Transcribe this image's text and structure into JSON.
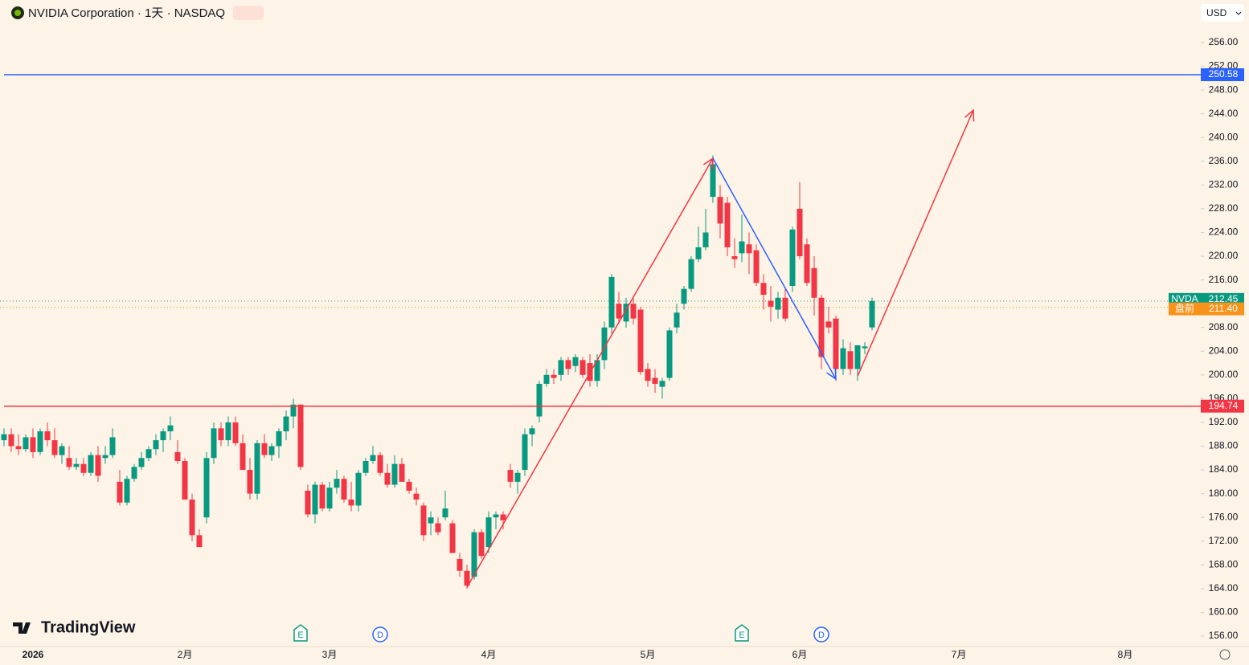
{
  "header": {
    "title": "NVIDIA Corporation · 1天 · NASDAQ",
    "currency": "USD",
    "brand": "TradingView"
  },
  "chart_data": {
    "type": "candlestick",
    "up_color": "#089981",
    "down_color": "#f23645",
    "categories": [
      null,
      null,
      null,
      null,
      "2026",
      null,
      null,
      null,
      null,
      null,
      null,
      null,
      null,
      null,
      null,
      null,
      null,
      null,
      null,
      null,
      null,
      null,
      null,
      null,
      null,
      "2月",
      null,
      null,
      null,
      null,
      null,
      null,
      null,
      null,
      null,
      null,
      null,
      null,
      null,
      null,
      null,
      null,
      null,
      null,
      null,
      "3月",
      null,
      null,
      null,
      null,
      null,
      null,
      null,
      null,
      null,
      null,
      null,
      null,
      null,
      null,
      null,
      null,
      null,
      null,
      null,
      null,
      null,
      "4月",
      null,
      null,
      null,
      null,
      null,
      null,
      null,
      null,
      null,
      null,
      null,
      null,
      null,
      null,
      null,
      null,
      null,
      null,
      null,
      null,
      null,
      "5月",
      null,
      null,
      null,
      null,
      null,
      null,
      null,
      null,
      null,
      null,
      null,
      null,
      null,
      null,
      null,
      null,
      null,
      null,
      null,
      null,
      "6月",
      null,
      null,
      null,
      null,
      null,
      null,
      null,
      null,
      null,
      null,
      null,
      null,
      null,
      null,
      null,
      null,
      null,
      null,
      null,
      null,
      null,
      "7月",
      null,
      null,
      null,
      null,
      null,
      null,
      null,
      null,
      null,
      null,
      null,
      null,
      null,
      null,
      null,
      null,
      null,
      null,
      null,
      null,
      null,
      null,
      "8月"
    ],
    "open": [
      189,
      190,
      188,
      187.5,
      189.5,
      187,
      190.5,
      189,
      186.5,
      186,
      184.5,
      185,
      183.5,
      186.5,
      186,
      186.5,
      182,
      178.5,
      182.5,
      184.5,
      186,
      187.5,
      189,
      190.5,
      187,
      185.5,
      179,
      173,
      176,
      186,
      191,
      189,
      192,
      188.5,
      184,
      180,
      188.5,
      186.5,
      188,
      190.5,
      193,
      195,
      180.5,
      176.5,
      181.5,
      177.5,
      181,
      182.5,
      179,
      178,
      183.5,
      185.5,
      186.5,
      183.5,
      181.5,
      185,
      182,
      180,
      178,
      175,
      175,
      176,
      175,
      169,
      167,
      166,
      173.5,
      171,
      176,
      176.5,
      184,
      182,
      184,
      190,
      193,
      198.5,
      200,
      200,
      202.5,
      201.5,
      202.5,
      202,
      199,
      202.5,
      208,
      212,
      209,
      212,
      211,
      201,
      199.5,
      198,
      199.5,
      208,
      212,
      214.5,
      219.5,
      221.5,
      230,
      230,
      229,
      220,
      220.5,
      222,
      221,
      215.5,
      212.5,
      211,
      213,
      215,
      228,
      222,
      218,
      213,
      209,
      209.5,
      201,
      204,
      201,
      204.5,
      208,
      null,
      null,
      null,
      null,
      null,
      null,
      null,
      null,
      null,
      null,
      null,
      null,
      null,
      null,
      null,
      null,
      null,
      null,
      null,
      null,
      null,
      null,
      null,
      null,
      null,
      null,
      null,
      null,
      null,
      null,
      null,
      null,
      null,
      null,
      null
    ],
    "high": [
      191,
      191,
      190,
      190,
      191,
      191,
      192,
      191,
      188.5,
      188,
      186,
      186,
      187,
      188,
      188,
      191,
      184,
      183,
      185,
      187,
      188,
      190,
      191,
      193,
      189,
      186,
      180,
      174,
      187,
      192,
      192,
      193,
      193,
      190,
      186,
      189,
      190,
      188.5,
      191,
      194,
      196,
      195,
      181.5,
      182,
      182,
      182,
      184,
      183,
      182,
      184,
      186,
      188,
      187,
      185,
      186.5,
      186,
      182.5,
      181,
      178.5,
      177,
      176,
      180.5,
      175.5,
      170,
      168,
      174,
      174,
      177,
      177,
      177,
      185,
      184,
      191,
      191.5,
      199,
      201,
      201,
      203,
      203,
      203.5,
      203,
      203.5,
      203.5,
      209,
      217,
      214,
      213,
      213,
      211.5,
      202,
      201,
      199.5,
      208,
      212,
      215,
      220,
      225,
      228,
      237,
      232,
      230,
      223,
      227,
      224,
      222,
      217,
      215,
      214,
      214.5,
      225,
      232.5,
      223,
      220,
      213.5,
      211.5,
      210,
      206,
      205.5,
      205,
      205.5,
      213,
      null,
      null,
      null,
      null,
      null,
      null,
      null,
      null,
      null,
      null,
      null,
      null,
      null,
      null,
      null,
      null,
      null,
      null,
      null,
      null,
      null,
      null,
      null,
      null,
      null,
      null,
      null,
      null,
      null,
      null,
      null,
      null,
      null,
      null,
      null
    ],
    "low": [
      188,
      187,
      186.5,
      187,
      186,
      186.5,
      188,
      186,
      185,
      184,
      184,
      183,
      183,
      182,
      185,
      186,
      178,
      178,
      182,
      184,
      185.5,
      186.5,
      187,
      189,
      185,
      179,
      172,
      171,
      175,
      185,
      188,
      188,
      188,
      184,
      179,
      179,
      186,
      185.5,
      186,
      189,
      191,
      184,
      176,
      175,
      177,
      177,
      180,
      178.5,
      177,
      177,
      183,
      185,
      183,
      181,
      181,
      182,
      180,
      178,
      172,
      173,
      173,
      175.5,
      170,
      166,
      164,
      165.5,
      169,
      170,
      174,
      174,
      181,
      180,
      183,
      188,
      192,
      198,
      198.5,
      199,
      200,
      200.5,
      199.5,
      198,
      198,
      201,
      207,
      209,
      208,
      208.5,
      200,
      198,
      197,
      196,
      199,
      207,
      211,
      214,
      219,
      221,
      229,
      223,
      220,
      218,
      219,
      217,
      215,
      211,
      209,
      209.5,
      209,
      214,
      219.5,
      215,
      210,
      201,
      207,
      199,
      200,
      200,
      199,
      203.5,
      207.5,
      null,
      null,
      null,
      null,
      null,
      null,
      null,
      null,
      null,
      null,
      null,
      null,
      null,
      null,
      null,
      null,
      null,
      null,
      null,
      null,
      null,
      null,
      null,
      null,
      null,
      null,
      null,
      null,
      null,
      null,
      null,
      null,
      null,
      null,
      null
    ],
    "close": [
      190,
      188,
      187.5,
      189.5,
      187,
      190.5,
      189,
      186.5,
      188,
      184.5,
      185,
      183.5,
      186.5,
      183,
      186.5,
      189.5,
      178.5,
      182.5,
      184.5,
      186,
      187.5,
      189,
      190.5,
      191.5,
      185.5,
      179,
      173,
      171,
      186,
      191,
      189,
      192,
      188.5,
      184,
      180,
      188.5,
      186.5,
      188,
      190.5,
      193,
      195,
      184.5,
      176.5,
      181.5,
      177.5,
      181,
      182.5,
      179,
      178,
      183.5,
      185.5,
      186.5,
      183.5,
      181.5,
      185,
      182,
      180.5,
      179,
      173,
      176,
      173.5,
      177.5,
      170,
      167,
      164.5,
      173.5,
      169.5,
      176,
      176.5,
      175.5,
      182,
      183.5,
      190,
      191,
      198.5,
      200,
      199.5,
      202.5,
      201,
      203,
      200,
      199,
      202.5,
      208,
      216.5,
      209.5,
      212,
      209.5,
      200.5,
      199,
      198.5,
      199,
      207.5,
      210.5,
      214.5,
      219.5,
      221.5,
      224,
      235.5,
      225.5,
      221.5,
      219.5,
      222.5,
      220.5,
      215.5,
      213.5,
      211.5,
      213,
      209.5,
      224.5,
      220,
      215.5,
      213,
      203,
      208,
      201,
      204.5,
      201,
      205,
      204.8,
      212.45,
      null,
      null,
      null,
      null,
      null,
      null,
      null,
      null,
      null,
      null,
      null,
      null,
      null,
      null,
      null,
      null,
      null,
      null,
      null,
      null,
      null,
      null,
      null,
      null,
      null,
      null,
      null,
      null,
      null,
      null,
      null,
      null,
      null,
      null,
      null
    ],
    "ylim": [
      154.24,
      263.17
    ],
    "yticks": [
      {
        "value": 156,
        "label": "156.00"
      },
      {
        "value": 160,
        "label": "160.00"
      },
      {
        "value": 164,
        "label": "164.00"
      },
      {
        "value": 168,
        "label": "168.00"
      },
      {
        "value": 172,
        "label": "172.00"
      },
      {
        "value": 176,
        "label": "176.00"
      },
      {
        "value": 180,
        "label": "180.00"
      },
      {
        "value": 184,
        "label": "184.00"
      },
      {
        "value": 188,
        "label": "188.00"
      },
      {
        "value": 192,
        "label": "192.00"
      },
      {
        "value": 196,
        "label": "196.00"
      },
      {
        "value": 200,
        "label": "200.00"
      },
      {
        "value": 204,
        "label": "204.00"
      },
      {
        "value": 208,
        "label": "208.00"
      },
      {
        "value": 216,
        "label": "216.00"
      },
      {
        "value": 220,
        "label": "220.00"
      },
      {
        "value": 224,
        "label": "224.00"
      },
      {
        "value": 228,
        "label": "228.00"
      },
      {
        "value": 232,
        "label": "232.00"
      },
      {
        "value": 236,
        "label": "236.00"
      },
      {
        "value": 240,
        "label": "240.00"
      },
      {
        "value": 244,
        "label": "244.00"
      },
      {
        "value": 248,
        "label": "248.00"
      },
      {
        "value": 252,
        "label": "252.00"
      },
      {
        "value": 256,
        "label": "256.00"
      }
    ],
    "hlines": [
      {
        "value": 250.58,
        "label": "250.58",
        "color": "#2962ff"
      },
      {
        "value": 194.74,
        "label": "194.74",
        "color": "#f23645"
      }
    ],
    "price_lines": [
      {
        "name": "NVDA",
        "value": 212.45,
        "label": "212.45",
        "color": "#089981"
      },
      {
        "name": "盘前",
        "value": 211.4,
        "label": "211.40",
        "color": "#f7931a"
      }
    ],
    "drawings": [
      {
        "color": "#f23645",
        "points": [
          [
            64,
            164.2
          ],
          [
            98,
            236.5
          ]
        ]
      },
      {
        "color": "#2962ff",
        "points": [
          [
            98,
            236.5
          ],
          [
            115,
            199.3
          ]
        ]
      },
      {
        "color": "#f23645",
        "points": [
          [
            118,
            199.8
          ],
          [
            134,
            244.6
          ]
        ]
      }
    ],
    "events": [
      {
        "index": 41,
        "label": "E",
        "color": "#089981"
      },
      {
        "index": 52,
        "label": "D",
        "color": "#2962ff"
      },
      {
        "index": 102,
        "label": "E",
        "color": "#089981"
      },
      {
        "index": 113,
        "label": "D",
        "color": "#2962ff"
      }
    ]
  }
}
